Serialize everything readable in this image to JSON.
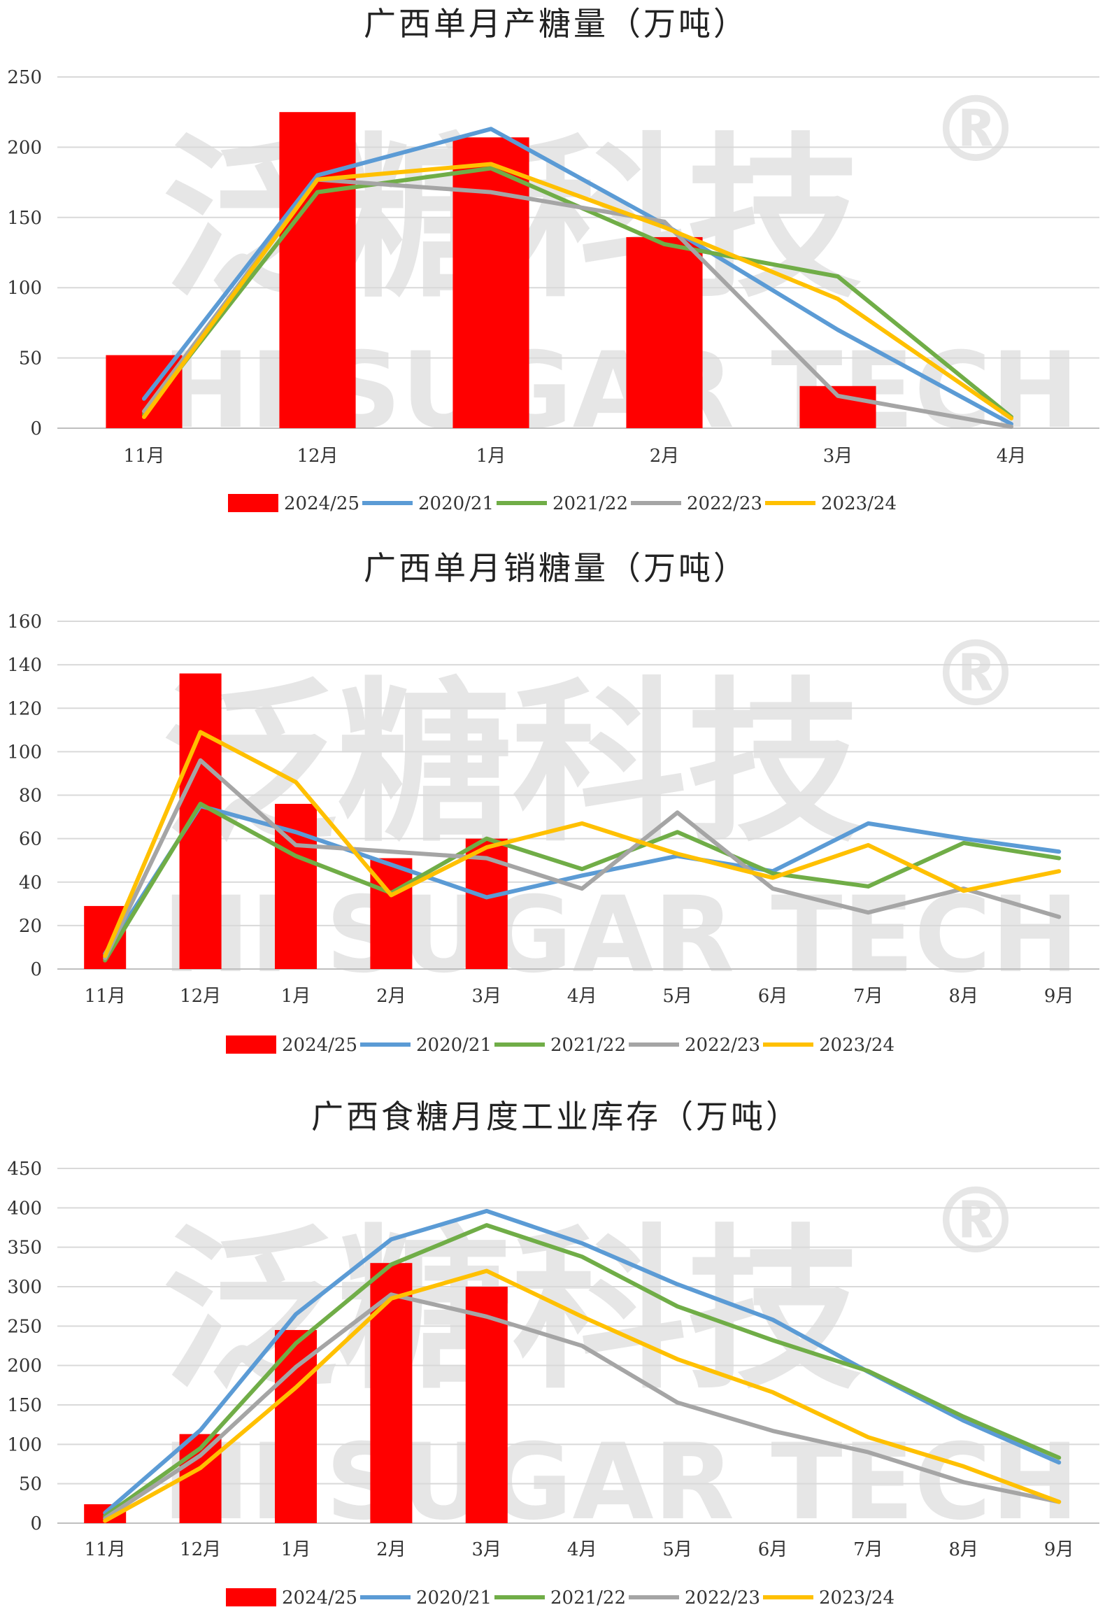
{
  "colors": {
    "2024/25": "#ff0000",
    "2020/21": "#5b9bd5",
    "2021/22": "#70ad47",
    "2022/23": "#a5a5a5",
    "2023/24": "#ffc000"
  },
  "watermark": {
    "cn": "泛糖科技",
    "en": "HI SUGAR TECH",
    "reg": "®"
  },
  "chart_data": [
    {
      "type": "bar+line",
      "title": "广西单月产糖量（万吨）",
      "categories": [
        "11月",
        "12月",
        "1月",
        "2月",
        "3月",
        "4月"
      ],
      "ylim": [
        0,
        250
      ],
      "yticks": [
        "0",
        "50",
        "100",
        "150",
        "200",
        "250"
      ],
      "legend_position": "bottom",
      "grid": true,
      "bar_series": {
        "name": "2024/25",
        "values": [
          52,
          225,
          207,
          136,
          30,
          null
        ]
      },
      "series": [
        {
          "name": "2020/21",
          "values": [
            21,
            180,
            213,
            145,
            70,
            3
          ]
        },
        {
          "name": "2021/22",
          "values": [
            10,
            168,
            185,
            131,
            108,
            8
          ]
        },
        {
          "name": "2022/23",
          "values": [
            12,
            177,
            168,
            147,
            23,
            1
          ]
        },
        {
          "name": "2023/24",
          "values": [
            8,
            177,
            188,
            143,
            92,
            7
          ]
        }
      ]
    },
    {
      "type": "bar+line",
      "title": "广西单月销糖量（万吨）",
      "categories": [
        "11月",
        "12月",
        "1月",
        "2月",
        "3月",
        "4月",
        "5月",
        "6月",
        "7月",
        "8月",
        "9月"
      ],
      "ylim": [
        0,
        160
      ],
      "yticks": [
        "0",
        "20",
        "40",
        "60",
        "80",
        "100",
        "120",
        "140",
        "160"
      ],
      "legend_position": "bottom",
      "grid": true,
      "bar_series": {
        "name": "2024/25",
        "values": [
          29,
          136,
          76,
          51,
          60,
          null,
          null,
          null,
          null,
          null,
          null
        ]
      },
      "series": [
        {
          "name": "2020/21",
          "values": [
            7,
            75,
            63,
            48,
            33,
            43,
            52,
            45,
            67,
            60,
            54
          ]
        },
        {
          "name": "2021/22",
          "values": [
            4,
            76,
            52,
            35,
            60,
            46,
            63,
            44,
            38,
            58,
            51
          ]
        },
        {
          "name": "2022/23",
          "values": [
            5,
            96,
            57,
            54,
            51,
            37,
            72,
            37,
            26,
            37,
            24
          ]
        },
        {
          "name": "2023/24",
          "values": [
            6,
            109,
            86,
            34,
            56,
            67,
            53,
            42,
            57,
            36,
            45
          ]
        }
      ]
    },
    {
      "type": "bar+line",
      "title": "广西食糖月度工业库存（万吨）",
      "categories": [
        "11月",
        "12月",
        "1月",
        "2月",
        "3月",
        "4月",
        "5月",
        "6月",
        "7月",
        "8月",
        "9月"
      ],
      "ylim": [
        0,
        450
      ],
      "yticks": [
        "0",
        "50",
        "100",
        "150",
        "200",
        "250",
        "300",
        "350",
        "400",
        "450"
      ],
      "legend_position": "bottom",
      "grid": true,
      "bar_series": {
        "name": "2024/25",
        "values": [
          24,
          113,
          245,
          330,
          300,
          null,
          null,
          null,
          null,
          null,
          null
        ]
      },
      "series": [
        {
          "name": "2020/21",
          "values": [
            13,
            118,
            265,
            360,
            396,
            355,
            303,
            258,
            192,
            130,
            77
          ]
        },
        {
          "name": "2021/22",
          "values": [
            9,
            95,
            228,
            328,
            378,
            338,
            275,
            232,
            193,
            135,
            83
          ]
        },
        {
          "name": "2022/23",
          "values": [
            6,
            86,
            198,
            290,
            262,
            225,
            153,
            117,
            90,
            52,
            27
          ]
        },
        {
          "name": "2023/24",
          "values": [
            3,
            70,
            172,
            285,
            320,
            262,
            208,
            166,
            109,
            72,
            27
          ]
        }
      ]
    }
  ]
}
